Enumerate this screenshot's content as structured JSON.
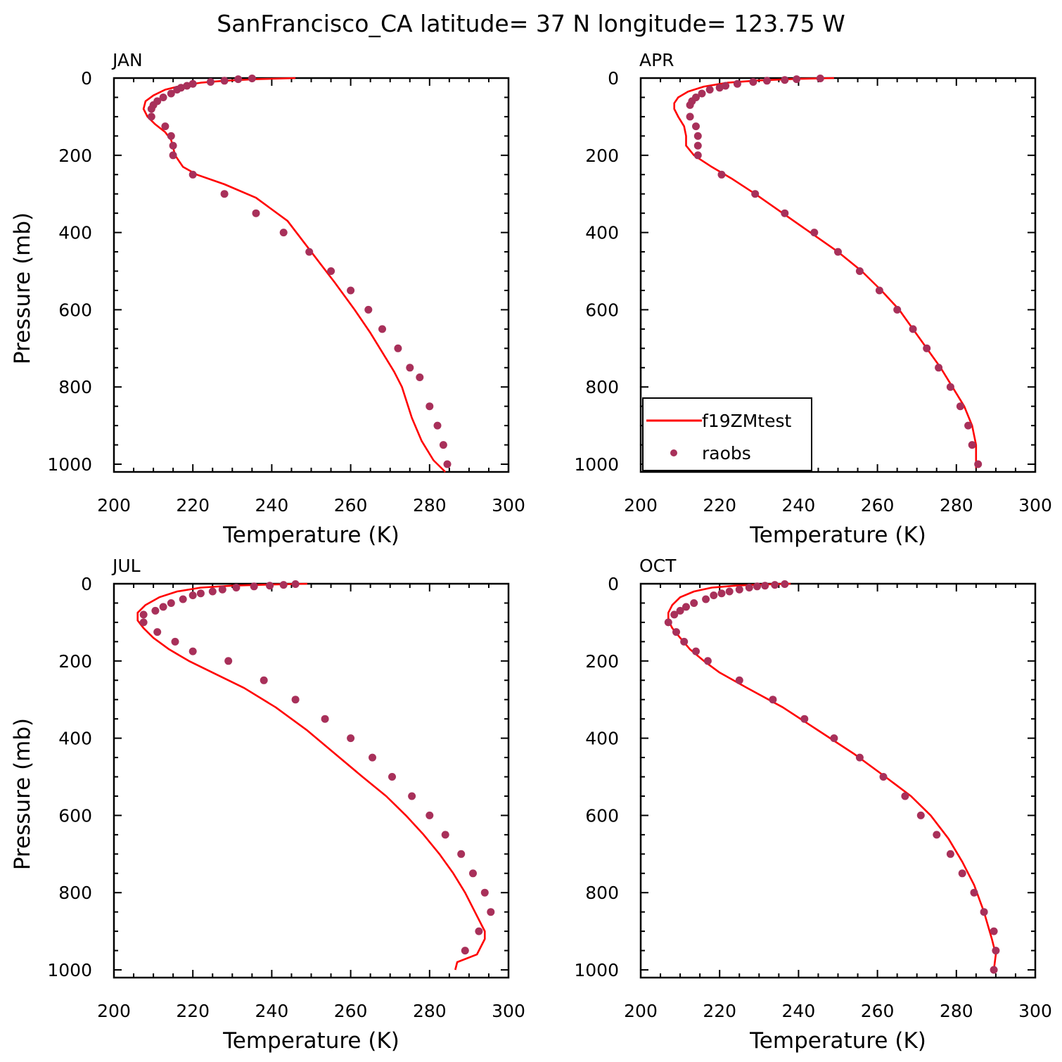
{
  "figure": {
    "title": "SanFrancisco_CA  latitude= 37 N longitude= 123.75 W"
  },
  "colors": {
    "model": "#ff0000",
    "obs": "#a8305a",
    "axis": "#000000"
  },
  "legend": {
    "model_label": "f19ZMtest",
    "obs_label": "raobs",
    "panel": "APR",
    "position": "lower-left"
  },
  "chart_data": [
    {
      "type": "line",
      "panel": "JAN",
      "xlabel": "Temperature (K)",
      "ylabel": "Pressure (mb)",
      "xlim": [
        200,
        300
      ],
      "ylim": [
        1020,
        0
      ],
      "xticks": [
        "200",
        "220",
        "240",
        "260",
        "280",
        "300"
      ],
      "yticks": [
        "0",
        "200",
        "400",
        "600",
        "800",
        "1000"
      ],
      "series": [
        {
          "name": "f19ZMtest",
          "style": "line",
          "x": [
            246,
            236,
            228,
            222,
            217,
            213,
            210,
            208,
            207.5,
            208.5,
            210.5,
            213,
            214.5,
            215.5,
            217.5,
            221,
            228,
            236,
            244,
            250,
            256,
            261,
            265,
            268,
            271,
            273,
            275.5,
            278,
            281,
            284
          ],
          "y": [
            0,
            3,
            7,
            12,
            20,
            30,
            45,
            60,
            80,
            100,
            120,
            140,
            160,
            200,
            230,
            250,
            275,
            310,
            370,
            450,
            530,
            600,
            660,
            710,
            760,
            800,
            880,
            940,
            990,
            1020
          ]
        },
        {
          "name": "raobs",
          "style": "markers",
          "x": [
            235,
            231.5,
            228,
            224.5,
            220,
            218.5,
            217,
            216,
            214.5,
            212.5,
            211,
            210,
            209.5,
            209.5,
            213,
            214.5,
            215,
            215,
            220,
            228,
            236,
            243,
            249.5,
            255,
            260,
            264.5,
            268,
            272,
            275,
            277.5,
            280,
            282,
            283.5,
            284.5
          ],
          "y": [
            1,
            3,
            7,
            10,
            15,
            20,
            25,
            30,
            40,
            50,
            60,
            70,
            80,
            100,
            125,
            150,
            175,
            200,
            250,
            300,
            350,
            400,
            450,
            500,
            550,
            600,
            650,
            700,
            750,
            775,
            850,
            900,
            950,
            1000
          ]
        }
      ]
    },
    {
      "type": "line",
      "panel": "APR",
      "xlabel": "Temperature (K)",
      "ylabel": "",
      "xlim": [
        200,
        300
      ],
      "ylim": [
        1020,
        0
      ],
      "xticks": [
        "200",
        "220",
        "240",
        "260",
        "280",
        "300"
      ],
      "yticks": [
        "0",
        "200",
        "400",
        "600",
        "800",
        "1000"
      ],
      "series": [
        {
          "name": "f19ZMtest",
          "style": "line",
          "x": [
            249,
            240,
            230,
            222,
            216,
            212,
            209.5,
            208.5,
            208.5,
            209.5,
            211,
            211.5,
            211.5,
            213.5,
            218,
            223,
            229,
            236,
            243,
            250,
            256,
            261,
            265.5,
            269,
            272.5,
            276,
            279,
            282,
            284,
            285,
            285
          ],
          "y": [
            0,
            2,
            6,
            12,
            22,
            35,
            50,
            65,
            80,
            100,
            125,
            150,
            175,
            200,
            230,
            260,
            300,
            350,
            400,
            450,
            500,
            550,
            600,
            650,
            700,
            750,
            800,
            850,
            900,
            950,
            1010
          ]
        },
        {
          "name": "raobs",
          "style": "markers",
          "x": [
            245.5,
            239.5,
            236.5,
            232,
            228.5,
            224.5,
            221.5,
            220,
            217.5,
            215.5,
            214,
            213,
            212.5,
            212.5,
            214,
            214.5,
            214.5,
            214.5,
            220.5,
            229,
            236.5,
            244,
            250,
            255.5,
            260.5,
            265,
            269,
            272.5,
            275.5,
            278.5,
            281,
            283,
            284,
            285.5
          ],
          "y": [
            1,
            3,
            5,
            7,
            10,
            15,
            20,
            25,
            30,
            40,
            50,
            60,
            70,
            100,
            125,
            150,
            175,
            200,
            250,
            300,
            350,
            400,
            450,
            500,
            550,
            600,
            650,
            700,
            750,
            800,
            850,
            900,
            950,
            1000
          ]
        }
      ]
    },
    {
      "type": "line",
      "panel": "JUL",
      "xlabel": "Temperature (K)",
      "ylabel": "Pressure (mb)",
      "xlim": [
        200,
        300
      ],
      "ylim": [
        1020,
        0
      ],
      "xticks": [
        "200",
        "220",
        "240",
        "260",
        "280",
        "300"
      ],
      "yticks": [
        "0",
        "200",
        "400",
        "600",
        "800",
        "1000"
      ],
      "series": [
        {
          "name": "f19ZMtest",
          "style": "line",
          "x": [
            249,
            240,
            230,
            222,
            216,
            211.5,
            208,
            206,
            206,
            207.5,
            210,
            214,
            219,
            225,
            233,
            241,
            249,
            256,
            263,
            269,
            274,
            278.5,
            282.5,
            286,
            289,
            291.5,
            293,
            294,
            294,
            293,
            292,
            287,
            286.5
          ],
          "y": [
            0,
            2,
            5,
            10,
            20,
            35,
            55,
            75,
            95,
            115,
            140,
            170,
            200,
            230,
            270,
            320,
            380,
            440,
            500,
            550,
            600,
            650,
            700,
            750,
            800,
            850,
            880,
            900,
            920,
            940,
            960,
            980,
            1000
          ]
        },
        {
          "name": "raobs",
          "style": "markers",
          "x": [
            246,
            243,
            239.5,
            235.5,
            231,
            227.5,
            225,
            222,
            220,
            217.5,
            214.5,
            212.5,
            210.5,
            207.5,
            207.5,
            211,
            215.5,
            220,
            229,
            238,
            246,
            253.5,
            260,
            265.5,
            270.5,
            275.5,
            280,
            284,
            288,
            291,
            294,
            295.5,
            292.5,
            289
          ],
          "y": [
            1,
            3,
            5,
            7,
            10,
            15,
            20,
            25,
            30,
            40,
            50,
            60,
            70,
            80,
            100,
            125,
            150,
            175,
            200,
            250,
            300,
            350,
            400,
            450,
            500,
            550,
            600,
            650,
            700,
            750,
            800,
            850,
            900,
            950
          ]
        }
      ]
    },
    {
      "type": "line",
      "panel": "OCT",
      "xlabel": "Temperature (K)",
      "ylabel": "",
      "xlim": [
        200,
        300
      ],
      "ylim": [
        1020,
        0
      ],
      "xticks": [
        "200",
        "220",
        "240",
        "260",
        "280",
        "300"
      ],
      "yticks": [
        "0",
        "200",
        "400",
        "600",
        "800",
        "1000"
      ],
      "series": [
        {
          "name": "f19ZMtest",
          "style": "line",
          "x": [
            238,
            231,
            224,
            218,
            213.5,
            210,
            208,
            207,
            207,
            208,
            210,
            212.5,
            216,
            220,
            227,
            236,
            245,
            254,
            262,
            268.5,
            273.5,
            278,
            281.5,
            284.5,
            287,
            289,
            290,
            289.5
          ],
          "y": [
            0,
            2,
            5,
            10,
            20,
            35,
            55,
            75,
            95,
            115,
            140,
            170,
            200,
            230,
            270,
            320,
            380,
            440,
            500,
            550,
            600,
            660,
            720,
            780,
            850,
            920,
            960,
            1000
          ]
        },
        {
          "name": "raobs",
          "style": "markers",
          "x": [
            236.5,
            234,
            231.5,
            229.5,
            227.5,
            225,
            222.5,
            220.5,
            218.5,
            216.5,
            213.5,
            211.5,
            210,
            208.5,
            207,
            209,
            211,
            214,
            217,
            225,
            233.5,
            241.5,
            249,
            255.5,
            261.5,
            267,
            271,
            275,
            278.5,
            281.5,
            284.5,
            287,
            289.5,
            290,
            289.5
          ],
          "y": [
            1,
            3,
            5,
            7,
            10,
            15,
            20,
            25,
            30,
            40,
            50,
            60,
            70,
            80,
            100,
            125,
            150,
            175,
            200,
            250,
            300,
            350,
            400,
            450,
            500,
            550,
            600,
            650,
            700,
            750,
            800,
            850,
            900,
            950,
            1000
          ]
        }
      ]
    }
  ]
}
